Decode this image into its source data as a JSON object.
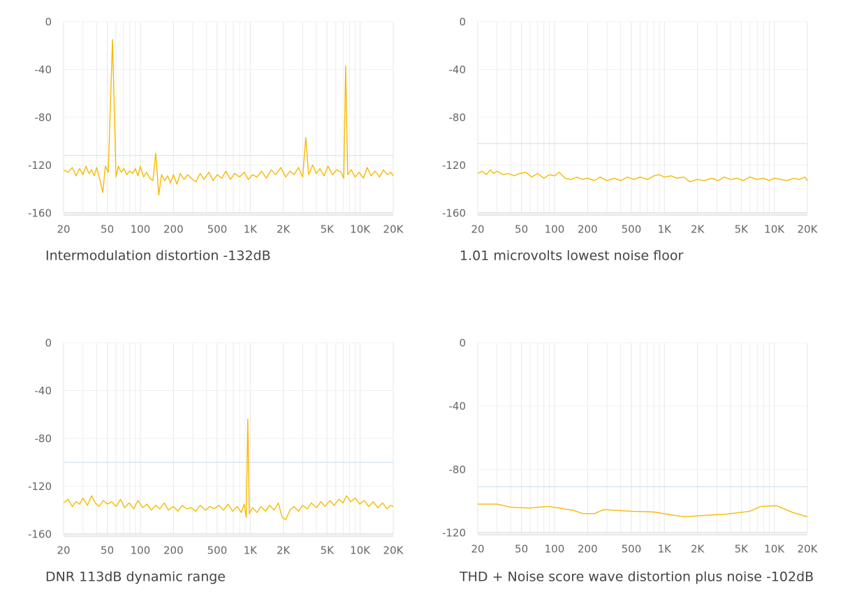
{
  "chart_data": [
    {
      "type": "line",
      "title": "Intermodulation distortion -132dB",
      "log_x": true,
      "grid": true,
      "color": "#f7b900",
      "xlim": [
        20,
        20000
      ],
      "ylim": [
        -160,
        0
      ],
      "reference_line": -112,
      "xticks": [
        20,
        50,
        100,
        200,
        500,
        {
          "value": 1000,
          "label": "1K"
        },
        {
          "value": 2000,
          "label": "2K"
        },
        {
          "value": 5000,
          "label": "5K"
        },
        {
          "value": 10000,
          "label": "10K"
        },
        {
          "value": 20000,
          "label": "20K"
        }
      ],
      "yticks": [
        0,
        -40,
        -80,
        -120,
        -160
      ],
      "x": [
        20,
        22,
        24,
        26,
        28,
        30,
        32,
        34,
        36,
        38,
        40,
        43,
        45.5,
        48,
        51,
        55.8,
        60,
        63,
        67,
        71,
        75,
        80,
        85,
        90,
        95,
        100,
        107,
        114,
        122,
        130,
        138,
        147,
        156,
        166,
        177,
        188,
        200,
        215,
        230,
        250,
        270,
        290,
        320,
        350,
        380,
        420,
        460,
        500,
        550,
        600,
        660,
        720,
        800,
        880,
        960,
        1050,
        1150,
        1270,
        1400,
        1550,
        1700,
        1900,
        2100,
        2300,
        2500,
        2750,
        3000,
        3200,
        3400,
        3700,
        4000,
        4300,
        4700,
        5100,
        5600,
        6100,
        6700,
        7100,
        7380,
        7700,
        8300,
        9000,
        9800,
        10700,
        11600,
        12600,
        13700,
        15000,
        16300,
        17700,
        19000,
        20000
      ],
      "values": [
        -124,
        -126,
        -122,
        -129,
        -123,
        -128,
        -121,
        -127,
        -124,
        -129,
        -122,
        -133,
        -143,
        -121,
        -126,
        -15,
        -130,
        -121,
        -126,
        -123,
        -128,
        -125,
        -127,
        -123,
        -129,
        -121,
        -130,
        -126,
        -131,
        -133,
        -110,
        -145,
        -128,
        -133,
        -129,
        -135,
        -128,
        -136,
        -127,
        -132,
        -128,
        -131,
        -134,
        -127,
        -132,
        -126,
        -133,
        -128,
        -131,
        -125,
        -132,
        -127,
        -130,
        -126,
        -132,
        -128,
        -130,
        -125,
        -131,
        -124,
        -128,
        -122,
        -130,
        -125,
        -128,
        -122,
        -130,
        -97,
        -128,
        -120,
        -127,
        -123,
        -129,
        -121,
        -128,
        -124,
        -126,
        -131,
        -37,
        -128,
        -124,
        -130,
        -126,
        -131,
        -122,
        -129,
        -125,
        -130,
        -124,
        -128,
        -126,
        -129
      ]
    },
    {
      "type": "line",
      "title": "1.01 microvolts lowest noise floor",
      "log_x": true,
      "grid": true,
      "color": "#f7b900",
      "xlim": [
        20,
        20000
      ],
      "ylim": [
        -160,
        0
      ],
      "reference_line": -102,
      "xticks": [
        20,
        50,
        100,
        200,
        500,
        {
          "value": 1000,
          "label": "1K"
        },
        {
          "value": 2000,
          "label": "2K"
        },
        {
          "value": 5000,
          "label": "5K"
        },
        {
          "value": 10000,
          "label": "10K"
        },
        {
          "value": 20000,
          "label": "20K"
        }
      ],
      "yticks": [
        0,
        -40,
        -80,
        -120,
        -160
      ],
      "x": [
        20,
        22,
        24,
        26,
        28,
        30,
        34,
        38,
        43,
        48,
        55,
        62,
        70,
        80,
        90,
        100,
        110,
        125,
        140,
        160,
        180,
        200,
        230,
        260,
        300,
        350,
        400,
        460,
        530,
        600,
        700,
        800,
        900,
        1000,
        1150,
        1300,
        1500,
        1700,
        2000,
        2300,
        2700,
        3100,
        3500,
        4000,
        4600,
        5200,
        6000,
        7000,
        8000,
        9000,
        10000,
        11500,
        13000,
        15000,
        17000,
        19000,
        20000
      ],
      "values": [
        -127,
        -125,
        -128,
        -124,
        -127,
        -125,
        -128,
        -127,
        -129,
        -127,
        -126,
        -130,
        -127,
        -131,
        -128,
        -129,
        -126,
        -131,
        -132,
        -130,
        -132,
        -131,
        -133,
        -130,
        -133,
        -131,
        -133,
        -130,
        -132,
        -130,
        -132,
        -129,
        -128,
        -130,
        -129,
        -131,
        -130,
        -134,
        -132,
        -133,
        -131,
        -133,
        -130,
        -132,
        -131,
        -133,
        -130,
        -132,
        -131,
        -133,
        -131,
        -132,
        -133,
        -131,
        -132,
        -130,
        -133
      ]
    },
    {
      "type": "line",
      "title": "DNR 113dB dynamic range",
      "log_x": true,
      "grid": true,
      "color": "#f7b900",
      "xlim": [
        20,
        20000
      ],
      "ylim": [
        -160,
        0
      ],
      "reference_line": -100,
      "xticks": [
        20,
        50,
        100,
        200,
        500,
        {
          "value": 1000,
          "label": "1K"
        },
        {
          "value": 2000,
          "label": "2K"
        },
        {
          "value": 5000,
          "label": "5K"
        },
        {
          "value": 10000,
          "label": "10K"
        },
        {
          "value": 20000,
          "label": "20K"
        }
      ],
      "yticks": [
        0,
        -40,
        -80,
        -120,
        -160
      ],
      "x": [
        20,
        22,
        24,
        26,
        28,
        30,
        33,
        36,
        39,
        42,
        46,
        50,
        55,
        60,
        66,
        72,
        79,
        87,
        95,
        105,
        115,
        126,
        138,
        150,
        165,
        180,
        200,
        220,
        240,
        265,
        290,
        320,
        350,
        390,
        430,
        470,
        520,
        570,
        630,
        690,
        760,
        830,
        880,
        920,
        950,
        980,
        1050,
        1150,
        1250,
        1380,
        1500,
        1650,
        1800,
        1950,
        2100,
        2300,
        2500,
        2750,
        3000,
        3300,
        3600,
        4000,
        4400,
        4800,
        5300,
        5800,
        6400,
        7000,
        7500,
        8200,
        9000,
        9900,
        10900,
        12000,
        13200,
        14500,
        16000,
        17500,
        19000,
        20000
      ],
      "values": [
        -134,
        -131,
        -137,
        -133,
        -135,
        -130,
        -136,
        -128,
        -134,
        -137,
        -132,
        -135,
        -133,
        -137,
        -131,
        -138,
        -134,
        -139,
        -132,
        -138,
        -135,
        -140,
        -136,
        -139,
        -134,
        -140,
        -137,
        -141,
        -136,
        -139,
        -138,
        -141,
        -136,
        -140,
        -137,
        -139,
        -136,
        -140,
        -135,
        -141,
        -137,
        -142,
        -135,
        -146,
        -64,
        -143,
        -138,
        -142,
        -137,
        -141,
        -136,
        -140,
        -134,
        -146,
        -148,
        -140,
        -137,
        -141,
        -136,
        -139,
        -134,
        -138,
        -133,
        -137,
        -132,
        -136,
        -131,
        -134,
        -128,
        -133,
        -130,
        -135,
        -132,
        -137,
        -133,
        -138,
        -134,
        -139,
        -136,
        -137
      ]
    },
    {
      "type": "line",
      "title": "THD + Noise score wave distortion plus noise -102dB",
      "log_x": true,
      "grid": true,
      "color": "#f7b900",
      "xlim": [
        20,
        20000
      ],
      "ylim": [
        -120,
        0
      ],
      "reference_line": -91,
      "xticks": [
        20,
        50,
        100,
        200,
        500,
        {
          "value": 1000,
          "label": "1K"
        },
        {
          "value": 2000,
          "label": "2K"
        },
        {
          "value": 5000,
          "label": "5K"
        },
        {
          "value": 10000,
          "label": "10K"
        },
        {
          "value": 20000,
          "label": "20K"
        }
      ],
      "yticks": [
        0,
        -40,
        -80,
        -120
      ],
      "x": [
        20,
        30,
        40,
        60,
        70,
        90,
        110,
        150,
        180,
        230,
        280,
        500,
        800,
        1200,
        1500,
        2500,
        3500,
        6000,
        7500,
        10500,
        15000,
        20000
      ],
      "values": [
        -102,
        -102,
        -104,
        -104.5,
        -104,
        -103.5,
        -104.5,
        -106,
        -108,
        -108,
        -105.5,
        -106.5,
        -107,
        -109,
        -110,
        -109,
        -108.5,
        -106.5,
        -103.5,
        -103,
        -107.5,
        -110
      ]
    }
  ]
}
